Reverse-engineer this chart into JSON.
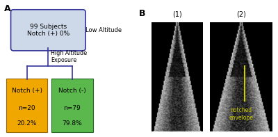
{
  "panel_A_label": "A",
  "panel_B_label": "B",
  "top_box_text": "99 Subjects\nNotch (+) 0%",
  "top_box_color": "#cdd8e8",
  "top_box_border_color": "#333399",
  "low_altitude_label": "Low Altitude",
  "high_altitude_label": "High Altitude\nExposure",
  "left_box_line1": "Notch (+)",
  "left_box_line2": "n=20",
  "left_box_line3": "20.2%",
  "left_box_color": "#f0a800",
  "right_box_line1": "Notch (-)",
  "right_box_line2": "n=79",
  "right_box_line3": "79.8%",
  "right_box_color": "#5ab84c",
  "line_color": "#333399",
  "img1_label": "(1)",
  "img2_label": "(2)",
  "annotation_text": "notched\nenvelope",
  "annotation_color": "#cccc00",
  "background_color": "#ffffff"
}
